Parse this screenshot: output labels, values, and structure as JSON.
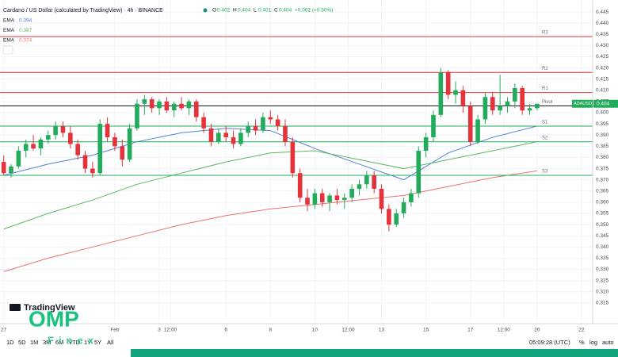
{
  "chart_data": {
    "type": "candlestick",
    "title": "Cardano / US Dollar (calculated by TradingView) · 4h · BINANCE",
    "ohlc_keys": [
      "O",
      "H",
      "L",
      "C"
    ],
    "change": "+0.002 (+0.50%)",
    "symbol_tag": "ADAUSD",
    "up_color": "#22ab5a",
    "down_color": "#e5323b",
    "candles": {
      "open": [
        0.378,
        0.373,
        0.376,
        0.383,
        0.386,
        0.384,
        0.388,
        0.39,
        0.394,
        0.391,
        0.386,
        0.381,
        0.375,
        0.373,
        0.395,
        0.389,
        0.385,
        0.379,
        0.393,
        0.404,
        0.406,
        0.402,
        0.405,
        0.401,
        0.404,
        0.402,
        0.405,
        0.398,
        0.393,
        0.387,
        0.391,
        0.389,
        0.386,
        0.391,
        0.394,
        0.392,
        0.398,
        0.397,
        0.394,
        0.387,
        0.373,
        0.362,
        0.359,
        0.364,
        0.36,
        0.363,
        0.361,
        0.362,
        0.366,
        0.368,
        0.372,
        0.366,
        0.357,
        0.35,
        0.355,
        0.36,
        0.364,
        0.383,
        0.389,
        0.399,
        0.418,
        0.408,
        0.41,
        0.403,
        0.387,
        0.397,
        0.407,
        0.401,
        0.403,
        0.405,
        0.411,
        0.401,
        0.402
      ],
      "high": [
        0.381,
        0.377,
        0.385,
        0.388,
        0.39,
        0.389,
        0.392,
        0.396,
        0.396,
        0.394,
        0.388,
        0.383,
        0.378,
        0.397,
        0.398,
        0.391,
        0.388,
        0.395,
        0.406,
        0.408,
        0.407,
        0.406,
        0.407,
        0.405,
        0.407,
        0.406,
        0.406,
        0.4,
        0.395,
        0.393,
        0.394,
        0.392,
        0.393,
        0.396,
        0.397,
        0.4,
        0.401,
        0.399,
        0.397,
        0.389,
        0.375,
        0.366,
        0.366,
        0.366,
        0.364,
        0.366,
        0.364,
        0.368,
        0.37,
        0.374,
        0.374,
        0.368,
        0.359,
        0.357,
        0.362,
        0.366,
        0.385,
        0.391,
        0.401,
        0.42,
        0.419,
        0.414,
        0.412,
        0.405,
        0.399,
        0.409,
        0.409,
        0.417,
        0.407,
        0.413,
        0.412,
        0.404,
        0.404
      ],
      "low": [
        0.372,
        0.371,
        0.375,
        0.38,
        0.383,
        0.381,
        0.386,
        0.388,
        0.389,
        0.384,
        0.379,
        0.373,
        0.371,
        0.372,
        0.387,
        0.383,
        0.376,
        0.378,
        0.392,
        0.399,
        0.4,
        0.399,
        0.4,
        0.398,
        0.401,
        0.399,
        0.396,
        0.391,
        0.385,
        0.386,
        0.387,
        0.384,
        0.385,
        0.389,
        0.39,
        0.391,
        0.395,
        0.392,
        0.385,
        0.371,
        0.36,
        0.356,
        0.357,
        0.358,
        0.356,
        0.359,
        0.357,
        0.36,
        0.363,
        0.366,
        0.364,
        0.355,
        0.347,
        0.349,
        0.353,
        0.358,
        0.362,
        0.38,
        0.387,
        0.398,
        0.406,
        0.404,
        0.4,
        0.385,
        0.386,
        0.395,
        0.399,
        0.399,
        0.4,
        0.402,
        0.399,
        0.399,
        0.401
      ],
      "close": [
        0.373,
        0.376,
        0.383,
        0.386,
        0.384,
        0.388,
        0.39,
        0.394,
        0.391,
        0.386,
        0.381,
        0.375,
        0.373,
        0.395,
        0.389,
        0.385,
        0.379,
        0.393,
        0.404,
        0.406,
        0.402,
        0.405,
        0.401,
        0.404,
        0.402,
        0.405,
        0.398,
        0.393,
        0.387,
        0.391,
        0.389,
        0.386,
        0.391,
        0.394,
        0.392,
        0.398,
        0.397,
        0.394,
        0.387,
        0.373,
        0.362,
        0.359,
        0.364,
        0.36,
        0.363,
        0.361,
        0.362,
        0.366,
        0.368,
        0.372,
        0.366,
        0.357,
        0.35,
        0.355,
        0.36,
        0.364,
        0.383,
        0.389,
        0.399,
        0.418,
        0.408,
        0.41,
        0.403,
        0.387,
        0.397,
        0.407,
        0.401,
        0.403,
        0.405,
        0.411,
        0.401,
        0.402,
        0.404
      ]
    },
    "series": [
      {
        "name": "EMA",
        "color": "#4f7fde",
        "x": [
          0,
          6,
          12,
          18,
          24,
          30,
          36,
          42,
          48,
          54,
          60,
          66,
          72
        ],
        "values": [
          0.372,
          0.377,
          0.381,
          0.387,
          0.391,
          0.393,
          0.392,
          0.384,
          0.377,
          0.37,
          0.382,
          0.389,
          0.394
        ]
      },
      {
        "name": "EMA",
        "color": "#5cb85c",
        "x": [
          0,
          6,
          12,
          18,
          24,
          30,
          36,
          42,
          48,
          54,
          60,
          66,
          72
        ],
        "values": [
          0.348,
          0.355,
          0.361,
          0.368,
          0.373,
          0.378,
          0.382,
          0.383,
          0.379,
          0.375,
          0.379,
          0.383,
          0.387
        ]
      },
      {
        "name": "EMA",
        "color": "#ef6f6f",
        "x": [
          0,
          6,
          12,
          18,
          24,
          30,
          36,
          42,
          48,
          54,
          60,
          66,
          72
        ],
        "values": [
          0.329,
          0.335,
          0.34,
          0.345,
          0.35,
          0.354,
          0.357,
          0.359,
          0.361,
          0.363,
          0.367,
          0.371,
          0.374
        ]
      }
    ],
    "levels": [
      {
        "name": "R3",
        "value": 0.434,
        "color": "#e5323b"
      },
      {
        "name": "R2",
        "value": 0.418,
        "color": "#e5323b"
      },
      {
        "name": "R1",
        "value": 0.409,
        "color": "#e5323b"
      },
      {
        "name": "Pivot",
        "value": 0.403,
        "color": "#131722"
      },
      {
        "name": "S1",
        "value": 0.394,
        "color": "#22ab5a"
      },
      {
        "name": "S2",
        "value": 0.387,
        "color": "#22ab5a"
      },
      {
        "name": "S3",
        "value": 0.372,
        "color": "#22ab5a"
      }
    ],
    "xlim": [
      -0.5,
      79.5
    ],
    "xticks": [
      {
        "value": 0,
        "label": "27"
      },
      {
        "value": 15,
        "label": "Feb"
      },
      {
        "value": 21,
        "label": "3"
      },
      {
        "value": 22.5,
        "label": "12:00"
      },
      {
        "value": 30,
        "label": "6"
      },
      {
        "value": 36,
        "label": "8"
      },
      {
        "value": 42,
        "label": "10"
      },
      {
        "value": 46.5,
        "label": "12:00"
      },
      {
        "value": 51,
        "label": "13"
      },
      {
        "value": 57,
        "label": "15"
      },
      {
        "value": 63,
        "label": "17"
      },
      {
        "value": 67.5,
        "label": "12:00"
      },
      {
        "value": 72,
        "label": "20"
      },
      {
        "value": 78,
        "label": "22"
      }
    ],
    "ylim": [
      0.3075,
      0.4475
    ],
    "yticks": [
      0.315,
      {
        "value": 0.32,
        "label": "0.320"
      },
      0.325,
      {
        "value": 0.33,
        "label": "0.330"
      },
      0.335,
      {
        "value": 0.34,
        "label": "0.340"
      },
      0.345,
      {
        "value": 0.35,
        "label": "0.350"
      },
      0.355,
      {
        "value": 0.36,
        "label": "0.360"
      },
      0.365,
      {
        "value": 0.37,
        "label": "0.370"
      },
      0.375,
      {
        "value": 0.38,
        "label": "0.380"
      },
      0.385,
      {
        "value": 0.39,
        "label": "0.390"
      },
      0.395,
      {
        "value": 0.4,
        "label": "0.400"
      },
      0.405,
      {
        "value": 0.41,
        "label": "0.410"
      },
      0.415,
      {
        "value": 0.42,
        "label": "0.420"
      },
      0.425,
      {
        "value": 0.43,
        "label": "0.430"
      },
      0.435,
      {
        "value": 0.44,
        "label": "0.440"
      },
      0.445
    ]
  },
  "ui": {
    "brand": "TradingView",
    "watermark": [
      "OMP",
      "Finex"
    ],
    "ranges": [
      "1D",
      "5D",
      "1M",
      "3M",
      "6M",
      "YTD",
      "1Y",
      "5Y",
      "All"
    ],
    "clock": "05:09:28 (UTC)",
    "options": [
      "%",
      "log",
      "auto"
    ]
  }
}
